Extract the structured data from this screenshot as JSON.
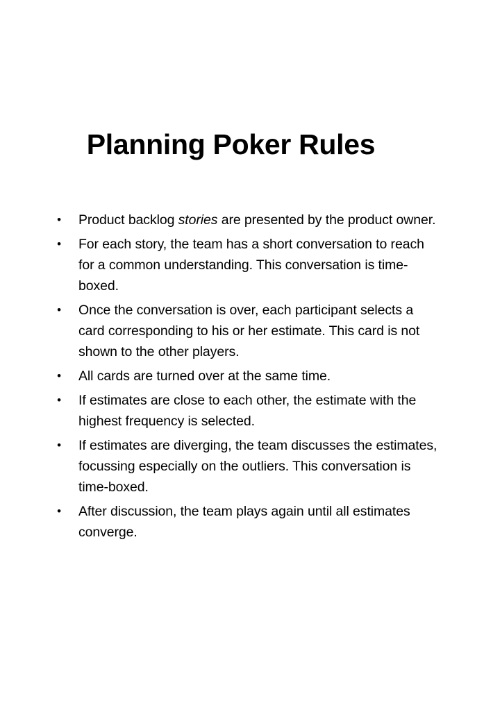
{
  "title": "Planning Poker Rules",
  "bullet_glyph": "•",
  "rules": [
    {
      "segments": [
        {
          "text": "Product backlog ",
          "italic": false
        },
        {
          "text": "stories",
          "italic": true
        },
        {
          "text": " are presented by the product owner.",
          "italic": false
        }
      ]
    },
    {
      "segments": [
        {
          "text": "For each story, the team has a short conversation to reach for a common understanding. This conversation is time-boxed.",
          "italic": false
        }
      ]
    },
    {
      "segments": [
        {
          "text": "Once the conversation is over, each participant selects a card corresponding to his or her estimate. This card is not shown to the other players.",
          "italic": false
        }
      ]
    },
    {
      "segments": [
        {
          "text": "All cards are turned over at the same time.",
          "italic": false
        }
      ]
    },
    {
      "segments": [
        {
          "text": "If estimates are close to each other, the estimate with the highest frequency is selected.",
          "italic": false
        }
      ]
    },
    {
      "segments": [
        {
          "text": "If estimates are diverging, the team discusses the estimates, focussing especially on the outliers. This conversation is time-boxed.",
          "italic": false
        }
      ]
    },
    {
      "segments": [
        {
          "text": "After discussion, the team plays again until all estimates converge.",
          "italic": false
        }
      ]
    }
  ]
}
